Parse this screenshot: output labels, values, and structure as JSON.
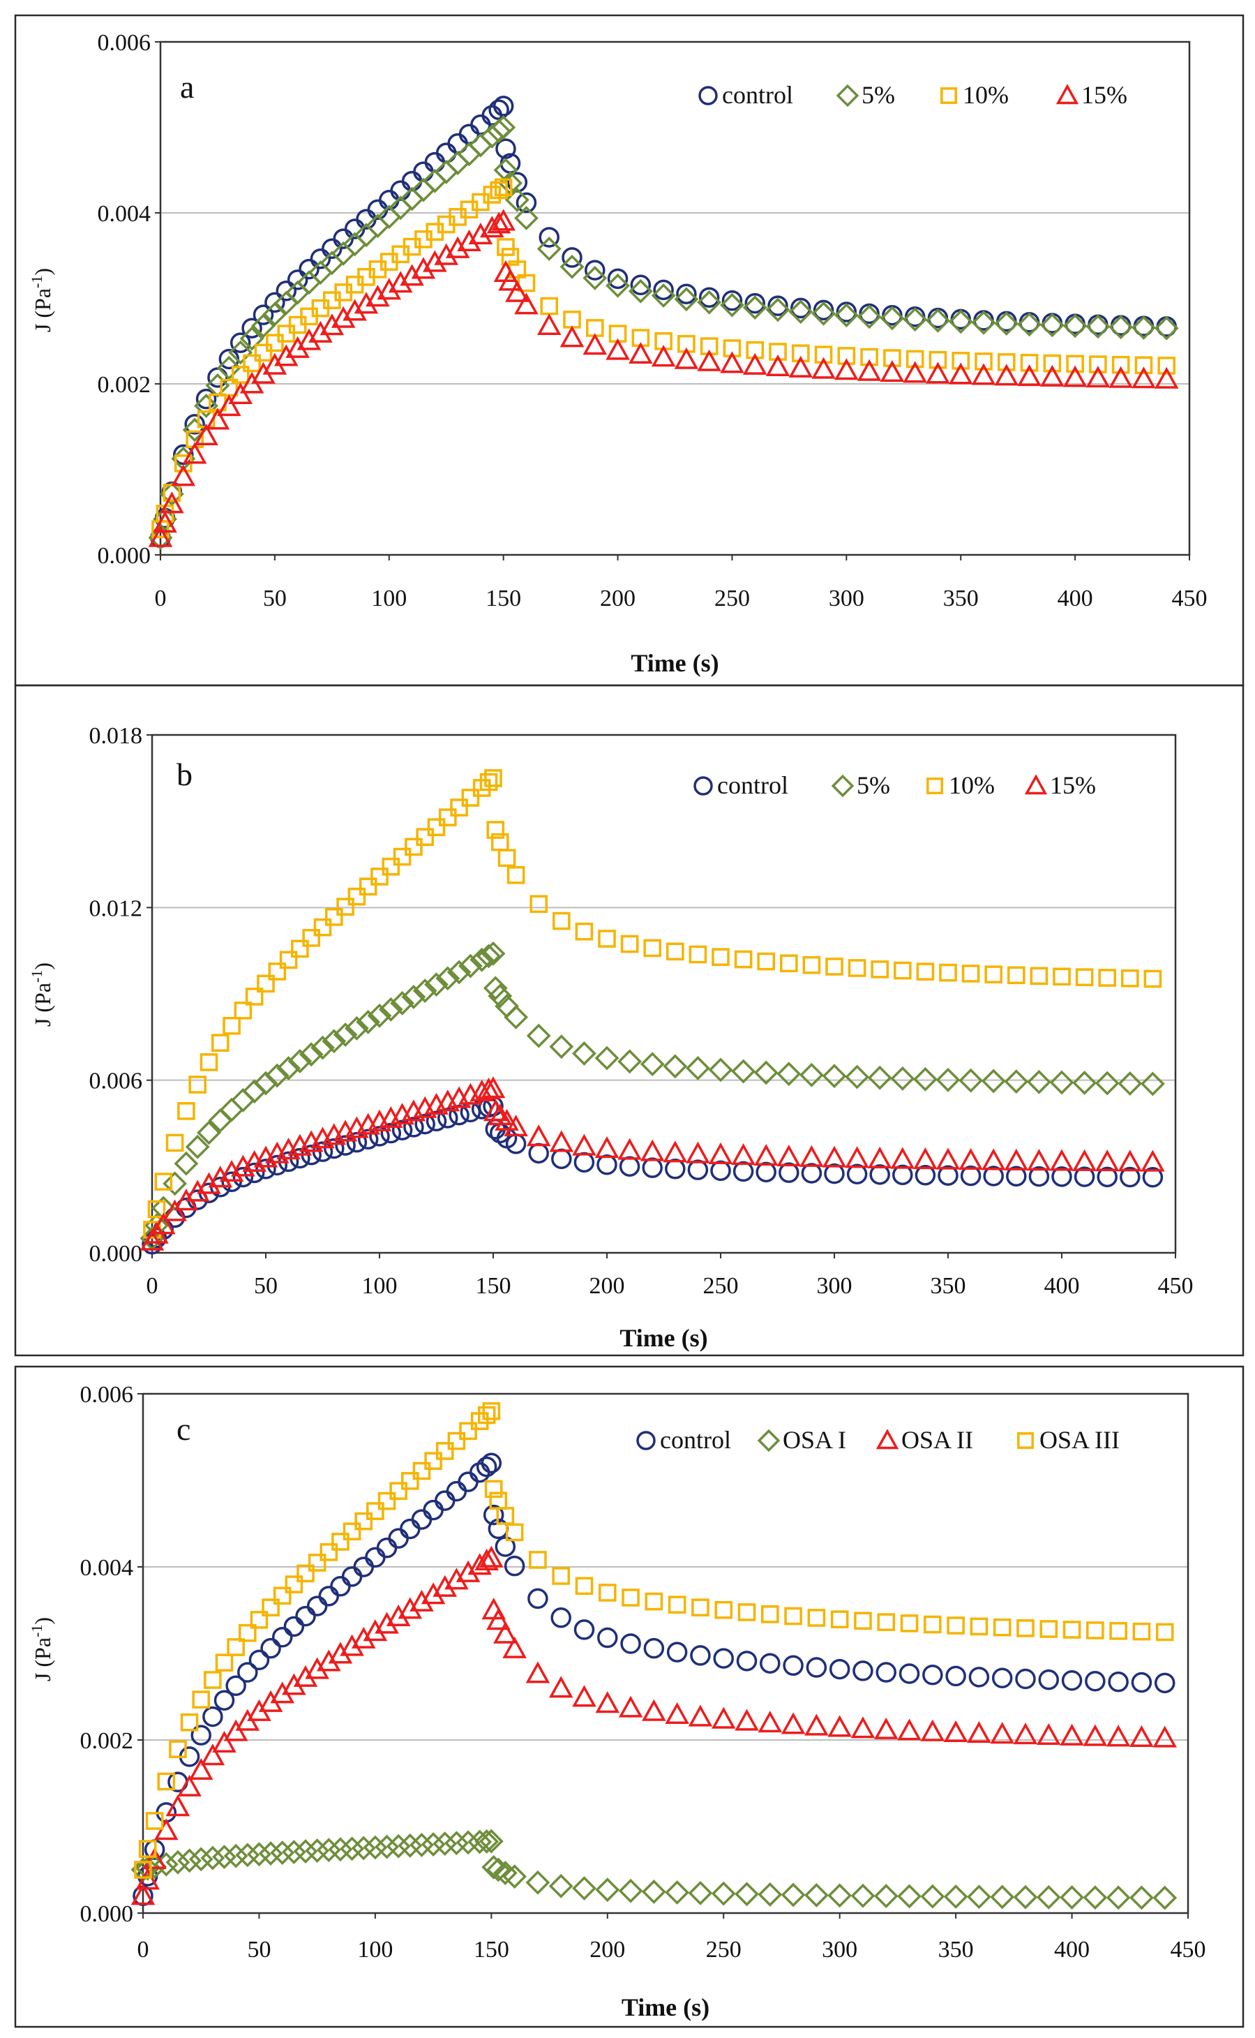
{
  "colors": {
    "control": "#1f2f7a",
    "pct5": "#6d8e3a",
    "pct10": "#f5b400",
    "pct15": "#ee1c1c",
    "osa1": "#6d8e3a",
    "osa2": "#ee1c1c",
    "osa3": "#f5b400"
  },
  "chart_data": [
    {
      "panel": "a",
      "type": "scatter",
      "xlabel": "Time (s)",
      "ylabel": "J (Pa-1)",
      "ylabel_main": "J (Pa",
      "ylabel_sup": "-1",
      "ylabel_end": ")",
      "xlim": [
        0,
        450
      ],
      "ylim": [
        0,
        0.006
      ],
      "xticks": [
        0,
        50,
        100,
        150,
        200,
        250,
        300,
        350,
        400,
        450
      ],
      "xtick_labels": [
        "0",
        "50",
        "100",
        "150",
        "200",
        "250",
        "300",
        "350",
        "400",
        "450"
      ],
      "yticks": [
        0,
        0.002,
        0.004,
        0.006
      ],
      "ytick_labels": [
        "0.000",
        "0.002",
        "0.004",
        "0.006"
      ],
      "grid": true,
      "legend_position": "top-right",
      "series": [
        {
          "name": "control",
          "marker": "circle",
          "color_key": "control",
          "creep_peak": 0.00525,
          "recovery_jump": 0.0005,
          "recovery_end": 0.0025,
          "recovery_tau": 100,
          "start": 0.0002
        },
        {
          "name": "5%",
          "marker": "diamond",
          "color_key": "pct5",
          "creep_peak": 0.005,
          "recovery_jump": 0.0005,
          "recovery_end": 0.0025,
          "recovery_tau": 100,
          "start": 0.0002
        },
        {
          "name": "10%",
          "marker": "square",
          "color_key": "pct10",
          "creep_peak": 0.0043,
          "recovery_jump": 0.0007,
          "recovery_end": 0.0021,
          "recovery_tau": 100,
          "start": 0.0003
        },
        {
          "name": "15%",
          "marker": "triangle",
          "color_key": "pct15",
          "creep_peak": 0.0039,
          "recovery_jump": 0.0006,
          "recovery_end": 0.00195,
          "recovery_tau": 100,
          "start": 0.0002
        }
      ]
    },
    {
      "panel": "b",
      "type": "scatter",
      "xlabel": "Time (s)",
      "ylabel": "J (Pa-1)",
      "ylabel_main": "J (Pa",
      "ylabel_sup": "-1",
      "ylabel_end": ")",
      "xlim": [
        0,
        450
      ],
      "ylim": [
        0,
        0.018
      ],
      "xticks": [
        0,
        50,
        100,
        150,
        200,
        250,
        300,
        350,
        400,
        450
      ],
      "xtick_labels": [
        "0",
        "50",
        "100",
        "150",
        "200",
        "250",
        "300",
        "350",
        "400",
        "450"
      ],
      "yticks": [
        0,
        0.006,
        0.012,
        0.018
      ],
      "ytick_labels": [
        "0.000",
        "0.006",
        "0.012",
        "0.018"
      ],
      "grid": true,
      "legend_position": "top-right",
      "series": [
        {
          "name": "control",
          "marker": "circle",
          "color_key": "control",
          "creep_peak": 0.0051,
          "recovery_jump": 0.0008,
          "recovery_end": 0.0025,
          "recovery_tau": 90,
          "start": 0.0003
        },
        {
          "name": "5%",
          "marker": "diamond",
          "color_key": "pct5",
          "creep_peak": 0.0104,
          "recovery_jump": 0.0012,
          "recovery_end": 0.0056,
          "recovery_tau": 100,
          "start": 0.0005
        },
        {
          "name": "10%",
          "marker": "square",
          "color_key": "pct10",
          "creep_peak": 0.0165,
          "recovery_jump": 0.0018,
          "recovery_end": 0.0091,
          "recovery_tau": 100,
          "start": 0.0008
        },
        {
          "name": "15%",
          "marker": "triangle",
          "color_key": "pct15",
          "creep_peak": 0.0057,
          "recovery_jump": 0.0008,
          "recovery_end": 0.003,
          "recovery_tau": 100,
          "start": 0.0004
        }
      ]
    },
    {
      "panel": "c",
      "type": "scatter",
      "xlabel": "Time (s)",
      "ylabel": "J (Pa-1)",
      "ylabel_main": "J (Pa",
      "ylabel_sup": "-1",
      "ylabel_end": ")",
      "xlim": [
        0,
        450
      ],
      "ylim": [
        0,
        0.006
      ],
      "xticks": [
        0,
        50,
        100,
        150,
        200,
        250,
        300,
        350,
        400,
        450
      ],
      "xtick_labels": [
        "0",
        "50",
        "100",
        "150",
        "200",
        "250",
        "300",
        "350",
        "400",
        "450"
      ],
      "yticks": [
        0,
        0.002,
        0.004,
        0.006
      ],
      "ytick_labels": [
        "0.000",
        "0.002",
        "0.004",
        "0.006"
      ],
      "grid": true,
      "legend_position": "top-right",
      "series": [
        {
          "name": "control",
          "marker": "circle",
          "color_key": "control",
          "creep_peak": 0.0052,
          "recovery_jump": 0.0006,
          "recovery_end": 0.0025,
          "recovery_tau": 100,
          "start": 0.0002
        },
        {
          "name": "OSA I",
          "marker": "diamond",
          "color_key": "osa1",
          "creep_peak": 0.00083,
          "recovery_jump": 0.0003,
          "recovery_end": 0.00015,
          "recovery_tau": 90,
          "start": 0.0005
        },
        {
          "name": "OSA II",
          "marker": "triangle",
          "color_key": "osa2",
          "creep_peak": 0.0041,
          "recovery_jump": 0.0006,
          "recovery_end": 0.0019,
          "recovery_tau": 100,
          "start": 0.0002
        },
        {
          "name": "OSA III",
          "marker": "square",
          "color_key": "osa3",
          "creep_peak": 0.0058,
          "recovery_jump": 0.0009,
          "recovery_end": 0.0031,
          "recovery_tau": 110,
          "start": 0.0005
        }
      ]
    }
  ]
}
